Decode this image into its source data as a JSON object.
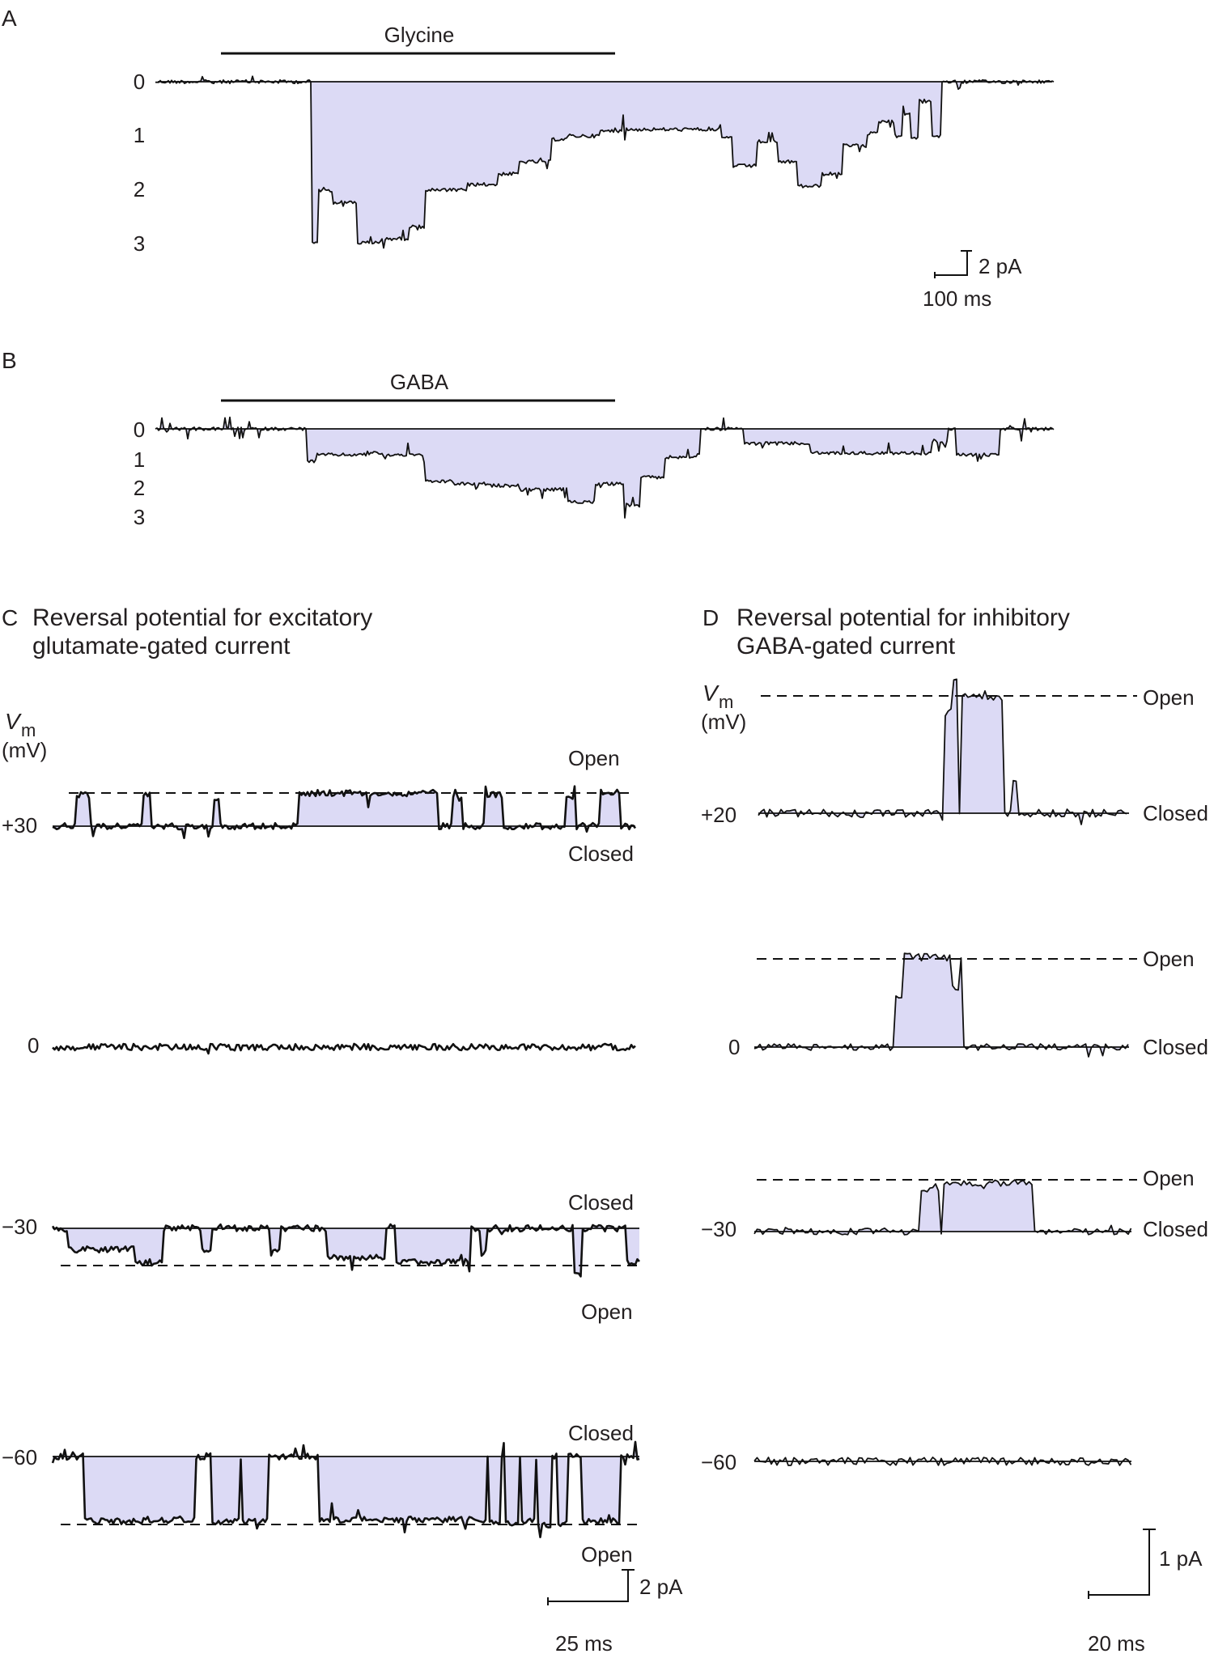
{
  "accent": {
    "fill": "#dcdaf5",
    "trace": "#111111"
  },
  "panel_a": {
    "letter": "A",
    "agonist": "Glycine",
    "levels": [
      "0",
      "1",
      "2",
      "3"
    ],
    "scale_y": "2 pA",
    "scale_x": "100 ms"
  },
  "panel_b": {
    "letter": "B",
    "agonist": "GABA",
    "levels": [
      "0",
      "1",
      "2",
      "3"
    ]
  },
  "panel_c": {
    "letter": "C",
    "title_line1": "Reversal potential for excitatory",
    "title_line2": "glutamate-gated current",
    "axis_label_v": "V",
    "axis_label_sub": "m",
    "axis_label_unit": "(mV)",
    "traces": [
      {
        "vm": "+30",
        "state_top": "Open",
        "state_bottom": "Closed"
      },
      {
        "vm": "0"
      },
      {
        "vm": "−30",
        "state_top": "Closed",
        "state_bottom": "Open"
      },
      {
        "vm": "−60",
        "state_top": "Closed",
        "state_bottom": "Open"
      }
    ],
    "scale_y": "2 pA",
    "scale_x": "25 ms"
  },
  "panel_d": {
    "letter": "D",
    "title_line1": "Reversal potential for inhibitory",
    "title_line2": "GABA-gated current",
    "traces": [
      {
        "vm": "+20",
        "state_open": "Open",
        "state_closed": "Closed"
      },
      {
        "vm": "0",
        "state_open": "Open",
        "state_closed": "Closed"
      },
      {
        "vm": "−30",
        "state_open": "Open",
        "state_closed": "Closed"
      },
      {
        "vm": "−60"
      }
    ],
    "scale_y": "1 pA",
    "scale_x": "20 ms"
  }
}
